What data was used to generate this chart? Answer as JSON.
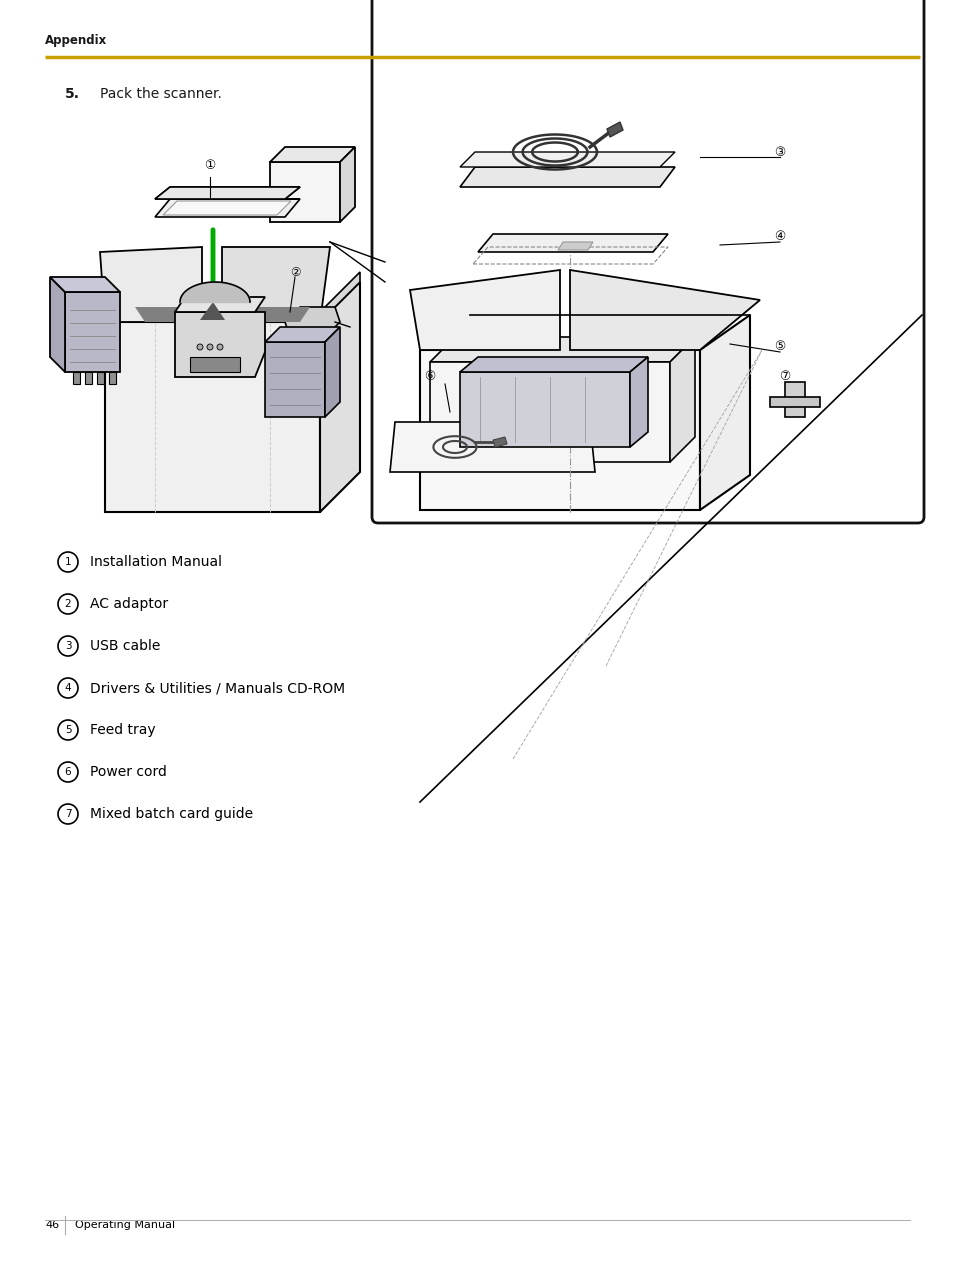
{
  "background_color": "#ffffff",
  "header_text": "Appendix",
  "header_fontsize": 8.5,
  "separator_color": "#c8a000",
  "step_text": "5.",
  "step_text2": "Pack the scanner.",
  "step_fontsize": 10,
  "list_items": [
    {
      "num": "1",
      "text": "Installation Manual"
    },
    {
      "num": "2",
      "text": "AC adaptor"
    },
    {
      "num": "3",
      "text": "USB cable"
    },
    {
      "num": "4",
      "text": "Drivers & Utilities / Manuals CD-ROM"
    },
    {
      "num": "5",
      "text": "Feed tray"
    },
    {
      "num": "6",
      "text": "Power cord"
    },
    {
      "num": "7",
      "text": "Mixed batch card guide"
    }
  ],
  "list_fontsize": 10,
  "footer_page": "46",
  "footer_text": "Operating Manual",
  "footer_fontsize": 8
}
